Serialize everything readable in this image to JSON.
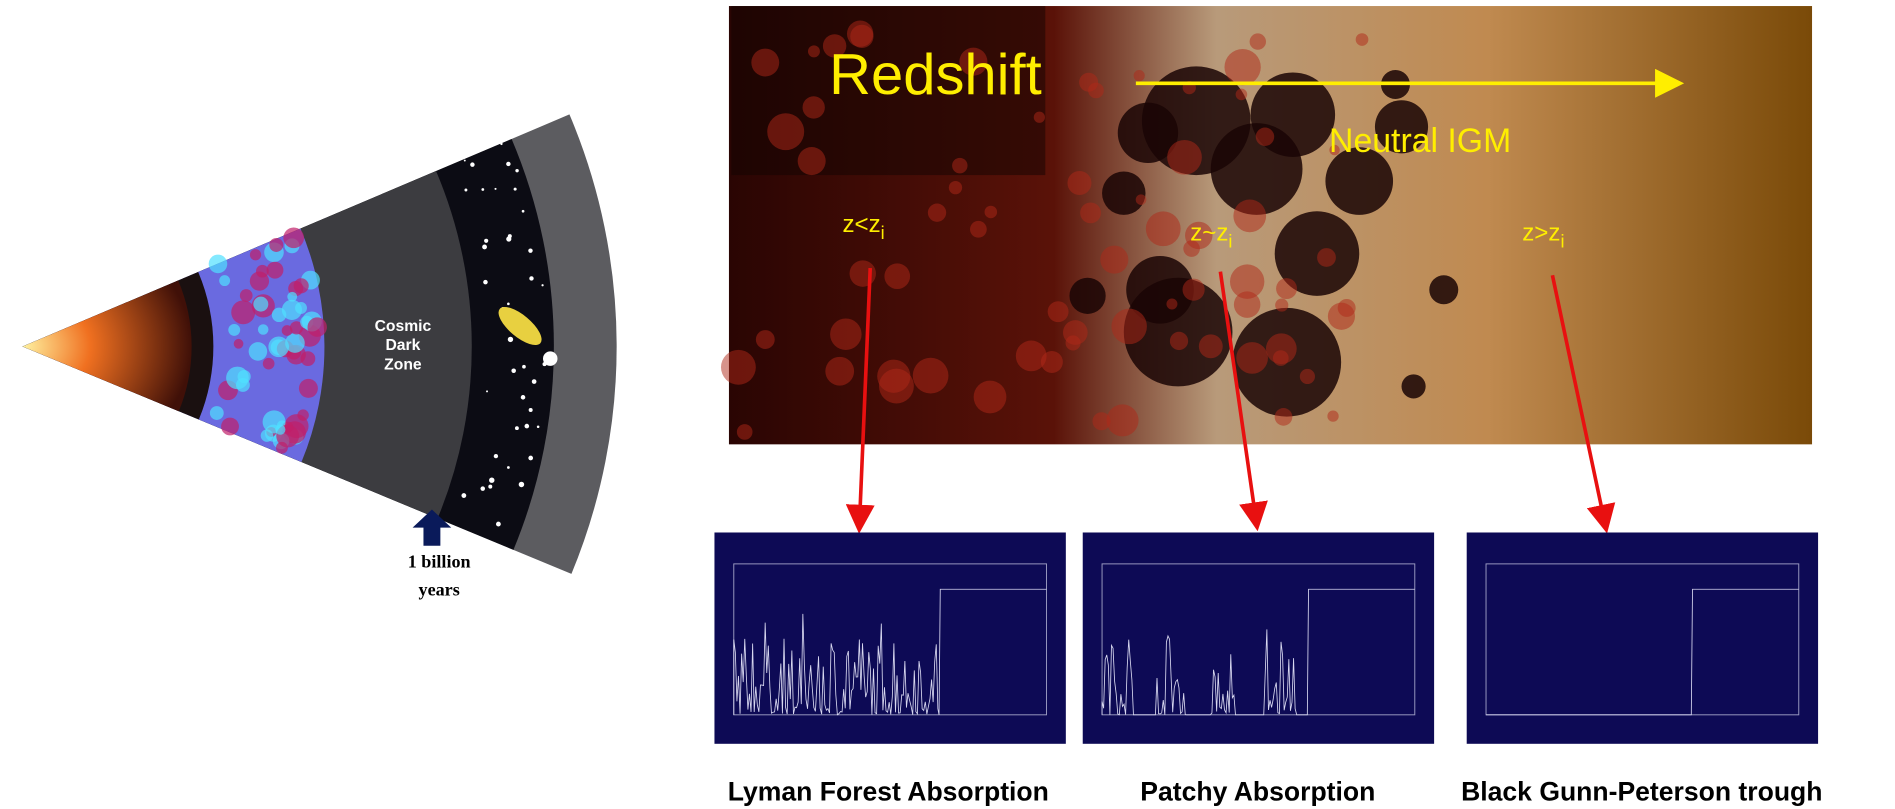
{
  "left_image": {
    "dark_zone_label": [
      "Cosmic",
      "Dark",
      "Zone"
    ],
    "time_label": [
      "1 billion",
      "years"
    ]
  },
  "right_image": {
    "redshift_label": "Redshift",
    "igm_label": "Neutral IGM",
    "regions": [
      {
        "label": "z<z",
        "subscript": "i"
      },
      {
        "label": "z~z",
        "subscript": "i"
      },
      {
        "label": "z>z",
        "subscript": "i"
      }
    ]
  },
  "spectra": [
    {
      "caption": "Lyman Forest Absorption"
    },
    {
      "caption": "Patchy Absorption"
    },
    {
      "caption": "Black Gunn-Peterson trough"
    }
  ]
}
